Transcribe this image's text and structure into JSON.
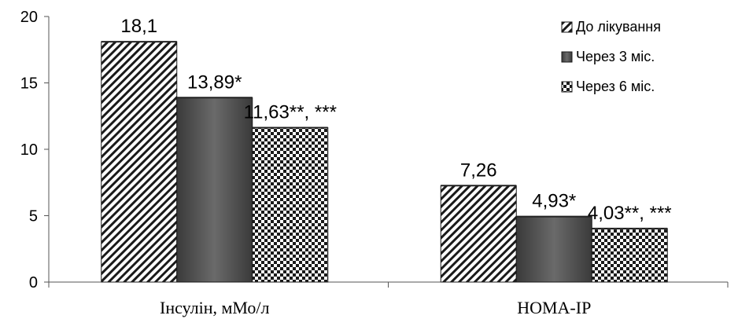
{
  "chart_data": {
    "type": "bar",
    "categories": [
      "Інсулін, мМо/л",
      "HOMA-IP"
    ],
    "series": [
      {
        "name": "До лікування",
        "values": [
          18.1,
          7.26
        ],
        "labels": [
          "18,1",
          "7,26"
        ],
        "pattern": "diagonal"
      },
      {
        "name": "Через 3 міс.",
        "values": [
          13.89,
          4.93
        ],
        "labels": [
          "13,89*",
          "4,93*"
        ],
        "pattern": "solid"
      },
      {
        "name": "Через 6 міс.",
        "values": [
          11.63,
          4.03
        ],
        "labels": [
          "11,63**, ***",
          "4,03**, ***"
        ],
        "pattern": "checker"
      }
    ],
    "y_ticks": [
      "0",
      "5",
      "10",
      "15",
      "20"
    ],
    "ylim": [
      0,
      20
    ],
    "grid": false,
    "legend": "top-right",
    "colors": {
      "solid_fill": "#555555",
      "stroke": "#1a1a1a"
    }
  }
}
